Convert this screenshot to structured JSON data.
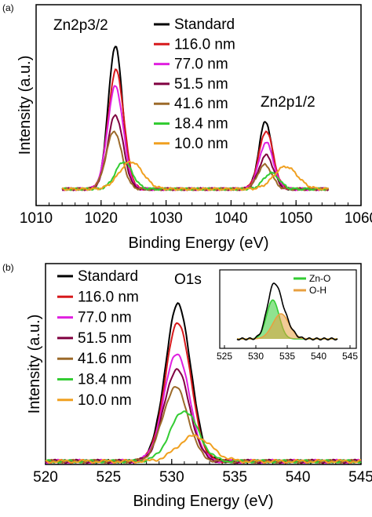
{
  "chart_data": [
    {
      "panel": "(a)",
      "type": "line",
      "xlabel": "Binding Energy (eV)",
      "ylabel": "Intensity (a.u.)",
      "xlim": [
        1010,
        1060
      ],
      "ylim": [
        0,
        1.0
      ],
      "xticks": [
        1010,
        1020,
        1030,
        1040,
        1050,
        1060
      ],
      "grid": false,
      "legend_position": "top-left",
      "annotations": [
        {
          "text": "Zn2p3/2",
          "x": 1017.5,
          "y": 0.99
        },
        {
          "text": "Zn2p1/2",
          "x": 1050.5,
          "y": 0.51
        }
      ],
      "series": [
        {
          "name": "Standard",
          "color": "#000000",
          "peaks": [
            [
              1022.2,
              0.89,
              1.1
            ],
            [
              1045.3,
              0.42,
              1.0
            ]
          ]
        },
        {
          "name": "116.0 nm",
          "color": "#d7191c",
          "peaks": [
            [
              1022.3,
              0.74,
              1.2
            ],
            [
              1045.4,
              0.36,
              1.1
            ]
          ]
        },
        {
          "name": "77.0 nm",
          "color": "#e020e0",
          "peaks": [
            [
              1022.2,
              0.64,
              1.2
            ],
            [
              1045.4,
              0.29,
              1.1
            ]
          ]
        },
        {
          "name": "51.5 nm",
          "color": "#800040",
          "peaks": [
            [
              1022.2,
              0.46,
              1.2
            ],
            [
              1045.4,
              0.21,
              1.1
            ]
          ]
        },
        {
          "name": "41.6 nm",
          "color": "#9c6a2a",
          "peaks": [
            [
              1022.0,
              0.36,
              1.2
            ],
            [
              1045.2,
              0.15,
              1.1
            ]
          ]
        },
        {
          "name": "18.4 nm",
          "color": "#33cc33",
          "peaks": [
            [
              1023.5,
              0.17,
              1.3
            ],
            [
              1046.2,
              0.1,
              1.2
            ]
          ]
        },
        {
          "name": "10.0 nm",
          "color": "#f0a020",
          "peaks": [
            [
              1024.6,
              0.17,
              1.8
            ],
            [
              1048.4,
              0.14,
              1.8
            ]
          ]
        }
      ]
    },
    {
      "panel": "(b)",
      "type": "line",
      "xlabel": "Binding Energy (eV)",
      "ylabel": "Intensity (a.u.)",
      "xlim": [
        520,
        545
      ],
      "ylim": [
        0,
        1.0
      ],
      "xticks": [
        520,
        525,
        530,
        535,
        540,
        545
      ],
      "grid": false,
      "legend_position": "top-left",
      "annotations": [
        {
          "text": "O1s",
          "x": 531.2,
          "y": 0.95
        }
      ],
      "series": [
        {
          "name": "Standard",
          "color": "#000000",
          "peaks": [
            [
              530.5,
              0.87,
              1.0
            ]
          ]
        },
        {
          "name": "116.0 nm",
          "color": "#d7191c",
          "peaks": [
            [
              530.5,
              0.77,
              1.0
            ]
          ]
        },
        {
          "name": "77.0 nm",
          "color": "#e020e0",
          "peaks": [
            [
              530.4,
              0.6,
              1.0
            ]
          ]
        },
        {
          "name": "51.5 nm",
          "color": "#800040",
          "peaks": [
            [
              530.4,
              0.51,
              1.0
            ]
          ]
        },
        {
          "name": "41.6 nm",
          "color": "#9c6a2a",
          "peaks": [
            [
              530.3,
              0.41,
              1.0
            ]
          ]
        },
        {
          "name": "18.4 nm",
          "color": "#33cc33",
          "peaks": [
            [
              531.0,
              0.28,
              1.1
            ]
          ]
        },
        {
          "name": "10.0 nm",
          "color": "#f0a020",
          "peaks": [
            [
              531.8,
              0.14,
              1.3
            ]
          ]
        }
      ],
      "inset": {
        "type": "area",
        "xlim": [
          525,
          545
        ],
        "xticks": [
          525,
          530,
          535,
          540,
          545
        ],
        "legend_position": "top-right",
        "series": [
          {
            "name": "Zn-O",
            "color": "#33cc33",
            "peaks": [
              [
                532.7,
                0.62,
                1.0
              ]
            ]
          },
          {
            "name": "O-H",
            "color": "#e8a040",
            "peaks": [
              [
                534.0,
                0.4,
                1.3
              ]
            ]
          },
          {
            "name": "",
            "color": "#000000",
            "peaks": [
              [
                532.7,
                0.62,
                1.0
              ],
              [
                534.0,
                0.4,
                1.3
              ]
            ]
          }
        ]
      }
    }
  ],
  "panel_labels": [
    "(a)",
    "(b)"
  ]
}
